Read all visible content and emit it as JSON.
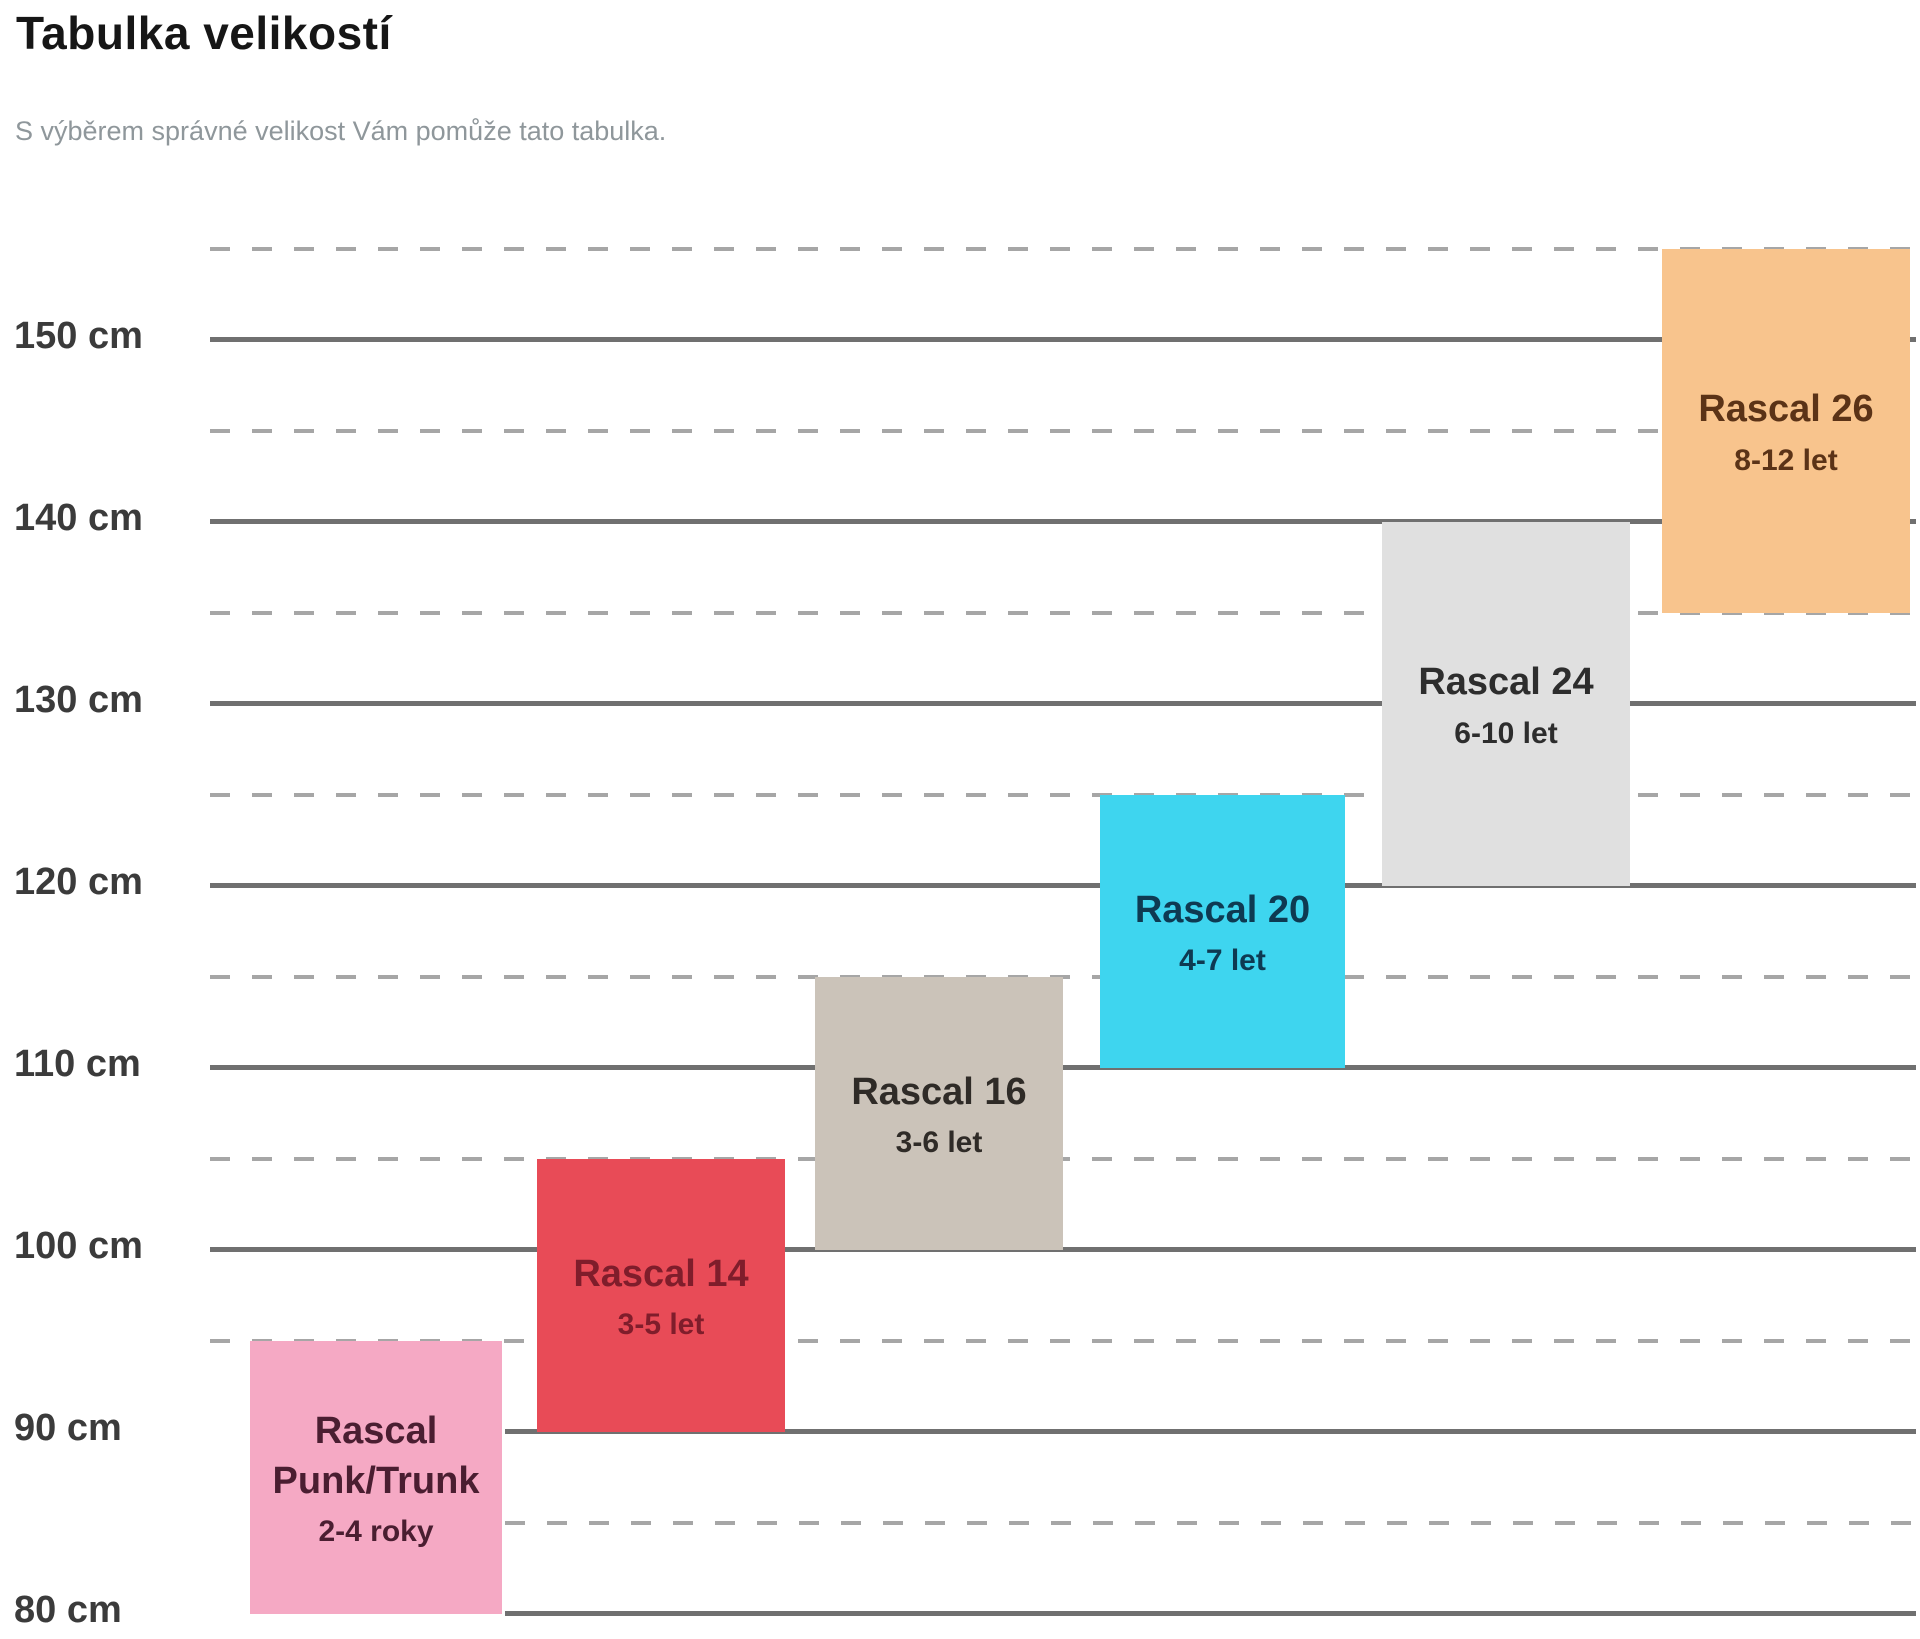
{
  "page": {
    "title": "Tabulka velikostí",
    "subtitle": "S výběrem správné velikost Vám pomůže tato tabulka."
  },
  "colors": {
    "background": "#ffffff",
    "title_text": "#161616",
    "subtitle_text": "#8f979b",
    "axis_label_text": "#3b3b3b",
    "solid_gridline": "#707070",
    "dashed_gridline": "#a6a6a6"
  },
  "chart_data": {
    "type": "bar",
    "subtype": "stepped-height-range-chart",
    "title": "Tabulka velikostí",
    "xlabel": "",
    "ylabel": "",
    "unit": "cm",
    "ylim": [
      80,
      155
    ],
    "grid": {
      "solid_step_cm": 10,
      "dashed_step_cm": 5,
      "solid_lines_cm": [
        80,
        90,
        100,
        110,
        120,
        130,
        140,
        150
      ],
      "dashed_lines_cm": [
        85,
        95,
        105,
        115,
        125,
        135,
        145,
        155
      ]
    },
    "y_ticks": [
      {
        "cm": 150,
        "label": "150 cm"
      },
      {
        "cm": 140,
        "label": "140 cm"
      },
      {
        "cm": 130,
        "label": "130 cm"
      },
      {
        "cm": 120,
        "label": "120 cm"
      },
      {
        "cm": 110,
        "label": "110 cm"
      },
      {
        "cm": 100,
        "label": "100 cm"
      },
      {
        "cm": 90,
        "label": "90 cm"
      },
      {
        "cm": 80,
        "label": "80 cm"
      }
    ],
    "categories": [
      "Rascal Punk/Trunk",
      "Rascal 14",
      "Rascal 16",
      "Rascal 20",
      "Rascal 24",
      "Rascal 26"
    ],
    "series": [
      {
        "name": "Rascal Punk/Trunk",
        "name_lines": [
          "Rascal",
          "Punk/Trunk"
        ],
        "age": "2-4 roky",
        "height_min_cm": 80,
        "height_max_cm": 95,
        "fill": "#f5a9c4",
        "text_color": "#4a1e31"
      },
      {
        "name": "Rascal 14",
        "name_lines": [
          "Rascal 14"
        ],
        "age": "3-5 let",
        "height_min_cm": 90,
        "height_max_cm": 105,
        "fill": "#e84b57",
        "text_color": "#7f1d2b"
      },
      {
        "name": "Rascal 16",
        "name_lines": [
          "Rascal 16"
        ],
        "age": "3-6 let",
        "height_min_cm": 100,
        "height_max_cm": 115,
        "fill": "#cbc3b9",
        "text_color": "#2f2b27"
      },
      {
        "name": "Rascal 20",
        "name_lines": [
          "Rascal 20"
        ],
        "age": "4-7 let",
        "height_min_cm": 110,
        "height_max_cm": 125,
        "fill": "#3ed5ef",
        "text_color": "#0e3a52"
      },
      {
        "name": "Rascal 24",
        "name_lines": [
          "Rascal 24"
        ],
        "age": "6-10 let",
        "height_min_cm": 120,
        "height_max_cm": 140,
        "fill": "#e0e0e0",
        "text_color": "#2d2d2d"
      },
      {
        "name": "Rascal 26",
        "name_lines": [
          "Rascal 26"
        ],
        "age": "8-12 let",
        "height_min_cm": 135,
        "height_max_cm": 155,
        "fill": "#f8c48d",
        "text_color": "#5b3317"
      }
    ]
  }
}
